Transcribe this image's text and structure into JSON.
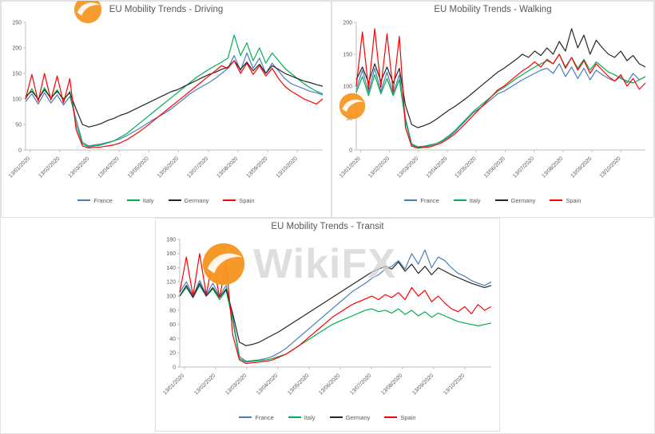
{
  "watermark": {
    "text": "WikiFX",
    "logo_color": "#f7941d",
    "text_color": "#d4d4d4"
  },
  "x_labels": [
    "13/01/2020",
    "13/02/2020",
    "13/03/2020",
    "13/04/2020",
    "13/05/2020",
    "13/06/2020",
    "13/07/2020",
    "13/08/2020",
    "13/09/2020",
    "13/10/2020"
  ],
  "chart_data": [
    {
      "type": "line",
      "title": "EU Mobility Trends - Driving",
      "ylim": [
        0,
        250
      ],
      "ytick": 50,
      "grid": false,
      "legend_position": "bottom",
      "x_labels": [
        "13/01/2020",
        "13/02/2020",
        "13/03/2020",
        "13/04/2020",
        "13/05/2020",
        "13/06/2020",
        "13/07/2020",
        "13/08/2020",
        "13/09/2020",
        "13/10/2020"
      ],
      "series": [
        {
          "name": "France",
          "color": "#4a7ebb",
          "values": [
            95,
            110,
            90,
            112,
            92,
            108,
            88,
            105,
            60,
            15,
            8,
            10,
            12,
            15,
            18,
            22,
            28,
            35,
            42,
            50,
            58,
            65,
            72,
            80,
            90,
            100,
            110,
            118,
            125,
            132,
            140,
            150,
            160,
            185,
            155,
            190,
            160,
            180,
            150,
            170,
            155,
            140,
            130,
            125,
            120,
            115,
            112,
            108
          ]
        },
        {
          "name": "Italy",
          "color": "#00b050",
          "values": [
            100,
            120,
            98,
            122,
            100,
            118,
            96,
            115,
            50,
            12,
            6,
            8,
            10,
            14,
            18,
            25,
            32,
            42,
            52,
            62,
            72,
            82,
            92,
            102,
            112,
            122,
            132,
            142,
            150,
            158,
            165,
            172,
            180,
            225,
            185,
            210,
            175,
            200,
            170,
            190,
            175,
            160,
            150,
            140,
            130,
            122,
            115,
            110
          ]
        },
        {
          "name": "Germany",
          "color": "#262626",
          "values": [
            105,
            115,
            100,
            118,
            102,
            115,
            100,
            112,
            80,
            50,
            45,
            48,
            52,
            58,
            62,
            68,
            72,
            78,
            84,
            90,
            96,
            102,
            108,
            114,
            118,
            124,
            130,
            136,
            142,
            148,
            152,
            158,
            162,
            175,
            158,
            172,
            155,
            168,
            150,
            165,
            158,
            150,
            145,
            140,
            135,
            132,
            128,
            125
          ]
        },
        {
          "name": "Spain",
          "color": "#ff0000",
          "values": [
            100,
            148,
            95,
            150,
            98,
            145,
            92,
            140,
            40,
            8,
            4,
            5,
            6,
            8,
            10,
            14,
            20,
            28,
            36,
            45,
            55,
            65,
            75,
            85,
            95,
            105,
            115,
            125,
            135,
            145,
            155,
            165,
            160,
            175,
            150,
            170,
            148,
            165,
            145,
            160,
            140,
            125,
            115,
            108,
            100,
            95,
            90,
            100
          ]
        }
      ]
    },
    {
      "type": "line",
      "title": "EU Mobility Trends - Walking",
      "ylim": [
        0,
        200
      ],
      "ytick": 50,
      "grid": false,
      "legend_position": "bottom",
      "x_labels": [
        "13/01/2020",
        "13/02/2020",
        "13/03/2020",
        "13/04/2020",
        "13/05/2020",
        "13/06/2020",
        "13/07/2020",
        "13/08/2020",
        "13/09/2020",
        "13/10/2020"
      ],
      "series": [
        {
          "name": "France",
          "color": "#4a7ebb",
          "values": [
            95,
            125,
            90,
            128,
            92,
            122,
            88,
            118,
            50,
            10,
            5,
            6,
            8,
            10,
            14,
            20,
            28,
            38,
            48,
            58,
            65,
            72,
            80,
            88,
            92,
            98,
            104,
            110,
            115,
            120,
            125,
            128,
            120,
            135,
            115,
            130,
            112,
            128,
            110,
            125,
            118,
            112,
            108,
            115,
            105,
            120,
            110,
            115
          ]
        },
        {
          "name": "Italy",
          "color": "#00b050",
          "values": [
            90,
            115,
            85,
            118,
            88,
            112,
            85,
            110,
            45,
            8,
            4,
            5,
            7,
            10,
            15,
            22,
            30,
            40,
            50,
            60,
            68,
            76,
            84,
            92,
            98,
            105,
            112,
            118,
            124,
            130,
            135,
            140,
            135,
            150,
            130,
            145,
            128,
            142,
            125,
            138,
            130,
            122,
            118,
            112,
            108,
            105,
            110,
            115
          ]
        },
        {
          "name": "Germany",
          "color": "#262626",
          "values": [
            110,
            130,
            105,
            135,
            108,
            130,
            105,
            128,
            70,
            40,
            35,
            38,
            42,
            48,
            55,
            62,
            68,
            75,
            82,
            90,
            98,
            106,
            114,
            122,
            128,
            135,
            142,
            150,
            145,
            155,
            148,
            160,
            150,
            170,
            155,
            190,
            160,
            180,
            150,
            172,
            160,
            150,
            145,
            155,
            140,
            148,
            135,
            130
          ]
        },
        {
          "name": "Spain",
          "color": "#ff0000",
          "values": [
            100,
            185,
            95,
            190,
            98,
            182,
            92,
            178,
            35,
            6,
            3,
            4,
            5,
            8,
            12,
            18,
            25,
            34,
            44,
            54,
            64,
            74,
            84,
            94,
            100,
            108,
            116,
            124,
            130,
            138,
            130,
            142,
            135,
            150,
            128,
            145,
            125,
            140,
            120,
            135,
            125,
            115,
            108,
            118,
            100,
            112,
            95,
            105
          ]
        }
      ]
    },
    {
      "type": "line",
      "title": "EU Mobility Trends - Transit",
      "ylim": [
        0,
        180
      ],
      "ytick": 20,
      "grid": false,
      "legend_position": "bottom",
      "x_labels": [
        "13/01/2020",
        "13/02/2020",
        "13/03/2020",
        "13/04/2020",
        "13/05/2020",
        "13/06/2020",
        "13/07/2020",
        "13/08/2020",
        "13/09/2020",
        "13/10/2020"
      ],
      "series": [
        {
          "name": "France",
          "color": "#4a7ebb",
          "values": [
            105,
            120,
            100,
            122,
            102,
            118,
            100,
            115,
            70,
            15,
            8,
            9,
            10,
            12,
            15,
            20,
            26,
            34,
            42,
            50,
            58,
            66,
            74,
            82,
            90,
            98,
            106,
            112,
            118,
            125,
            130,
            138,
            142,
            150,
            138,
            160,
            145,
            165,
            140,
            155,
            150,
            140,
            132,
            128,
            122,
            118,
            115,
            120
          ]
        },
        {
          "name": "Italy",
          "color": "#00b050",
          "values": [
            100,
            112,
            98,
            115,
            100,
            110,
            95,
            108,
            65,
            12,
            7,
            8,
            9,
            10,
            12,
            15,
            18,
            24,
            30,
            36,
            42,
            48,
            54,
            60,
            64,
            68,
            72,
            76,
            80,
            82,
            78,
            80,
            76,
            82,
            74,
            80,
            72,
            78,
            70,
            76,
            72,
            68,
            64,
            62,
            60,
            58,
            60,
            62
          ]
        },
        {
          "name": "Germany",
          "color": "#262626",
          "values": [
            100,
            115,
            98,
            118,
            100,
            112,
            98,
            110,
            75,
            35,
            30,
            32,
            35,
            40,
            45,
            50,
            56,
            62,
            68,
            74,
            80,
            86,
            92,
            98,
            104,
            110,
            116,
            122,
            128,
            134,
            138,
            142,
            138,
            148,
            135,
            145,
            132,
            142,
            130,
            140,
            135,
            130,
            126,
            122,
            118,
            115,
            112,
            115
          ]
        },
        {
          "name": "Spain",
          "color": "#ff0000",
          "values": [
            105,
            155,
            100,
            160,
            102,
            150,
            98,
            145,
            45,
            10,
            5,
            6,
            7,
            8,
            10,
            14,
            18,
            24,
            30,
            38,
            46,
            54,
            62,
            70,
            76,
            82,
            88,
            92,
            96,
            100,
            95,
            102,
            98,
            105,
            95,
            112,
            100,
            108,
            92,
            100,
            90,
            82,
            78,
            85,
            75,
            88,
            80,
            85
          ]
        }
      ]
    }
  ]
}
